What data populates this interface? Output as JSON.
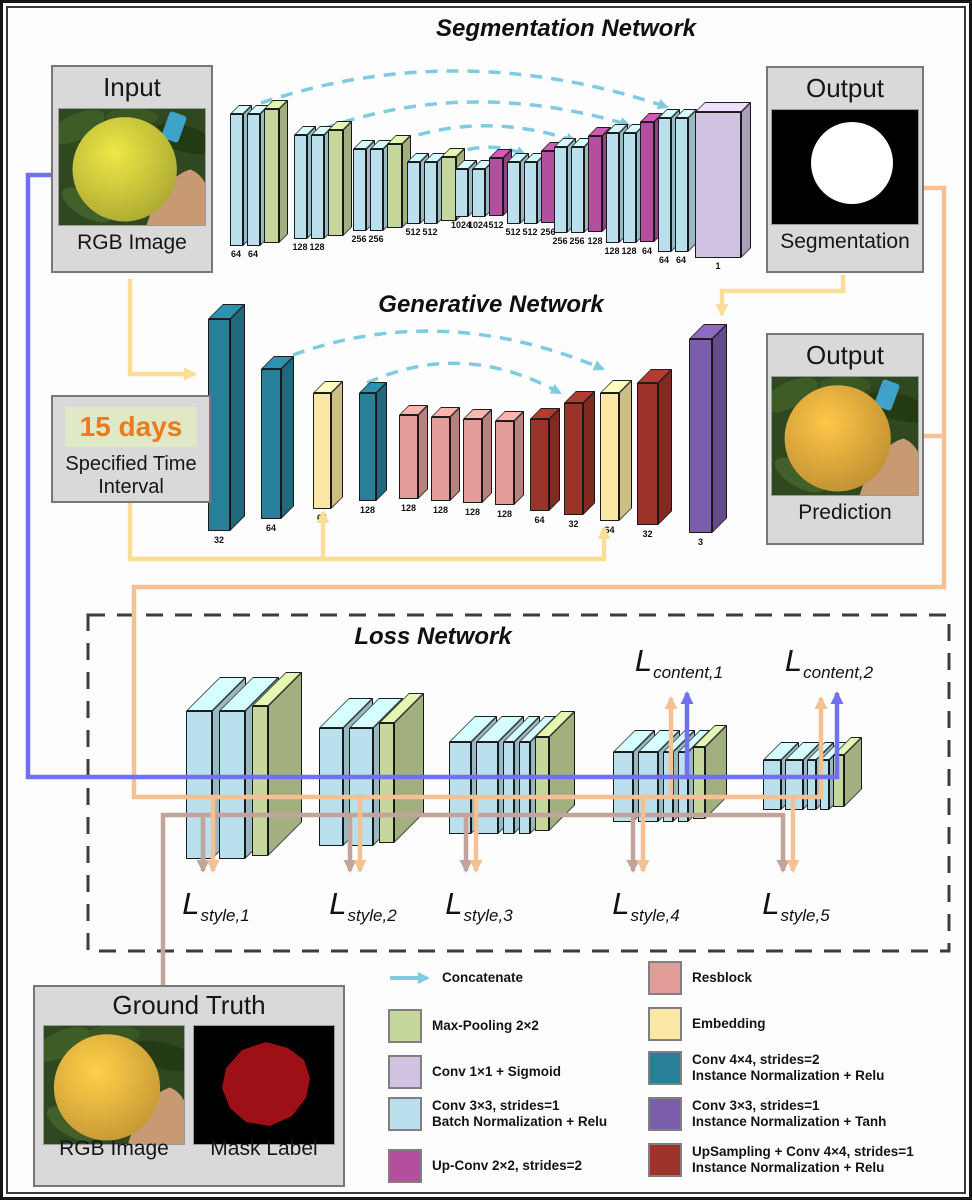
{
  "colors": {
    "conv_bn": "#b9e0ec",
    "pool": "#c5d79c",
    "conv_sigmoid": "#cfc3e1",
    "upconv": "#b44f9f",
    "conv_in_relu": "#277f99",
    "embedding": "#fae8a4",
    "resblock": "#e29d98",
    "upsampling": "#9c332a",
    "conv_in_tanh": "#7a5dab",
    "concat_arrow": "#7fcbe0",
    "line_yellow": "#fadd96",
    "line_peach": "#f4c194",
    "line_blue": "#7170ee",
    "line_tan": "#c2a49c",
    "days_text": "#ee7a20",
    "days_bg": "#dfe9c6",
    "box_bg": "#d9d9d9"
  },
  "images": {
    "input_fruit": "#c9c53b",
    "prediction_fruit": "#e2a83c",
    "ground_truth_fruit": "#e9b13e",
    "mask_fill": "#9c1016",
    "segmentation_mask": "#ffffff",
    "photo_background": "#2f481f",
    "hand": "#c79a74"
  },
  "segmentation_network": {
    "title": "Segmentation Network",
    "input_box": {
      "title": "Input",
      "caption": "RGB Image"
    },
    "output_box": {
      "title": "Output",
      "caption": "Segmentation"
    },
    "groups": [
      {
        "convs": [
          "64",
          "64"
        ],
        "pool": true
      },
      {
        "convs": [
          "128",
          "128"
        ],
        "pool": true
      },
      {
        "convs": [
          "256",
          "256"
        ],
        "pool": true
      },
      {
        "convs": [
          "512",
          "512"
        ],
        "pool": true
      },
      {
        "convs": [
          "1024",
          "1024"
        ],
        "up": "512"
      },
      {
        "convs": [
          "512",
          "512"
        ],
        "up": "256"
      },
      {
        "convs": [
          "256",
          "256"
        ],
        "up": "128"
      },
      {
        "convs": [
          "128",
          "128"
        ],
        "up": "64"
      },
      {
        "convs": [
          "64",
          "64"
        ],
        "out": "1"
      }
    ]
  },
  "generative_network": {
    "title": "Generative Network",
    "interval_box": {
      "value": "15 days",
      "caption": "Specified Time Interval"
    },
    "output_box": {
      "title": "Output",
      "caption": "Prediction"
    },
    "blocks": [
      {
        "type": "conv_in_relu",
        "label": "32"
      },
      {
        "type": "conv_in_relu",
        "label": "64"
      },
      {
        "type": "embedding",
        "label": "64"
      },
      {
        "type": "conv_in_relu",
        "label": "128"
      },
      {
        "type": "resblock",
        "label": "128"
      },
      {
        "type": "resblock",
        "label": "128"
      },
      {
        "type": "resblock",
        "label": "128"
      },
      {
        "type": "resblock",
        "label": "128"
      },
      {
        "type": "upsampling",
        "label": "64"
      },
      {
        "type": "upsampling",
        "label": "32"
      },
      {
        "type": "embedding",
        "label": "64"
      },
      {
        "type": "upsampling",
        "label": "32"
      },
      {
        "type": "conv_in_tanh",
        "label": "3"
      }
    ]
  },
  "loss_network": {
    "title": "Loss Network",
    "groups": [
      {
        "convs": 2
      },
      {
        "convs": 2
      },
      {
        "convs": 4
      },
      {
        "convs": 4
      },
      {
        "convs": 4
      }
    ],
    "content_labels": [
      {
        "base": "L",
        "sub": "content,1"
      },
      {
        "base": "L",
        "sub": "content,2"
      }
    ],
    "style_labels": [
      {
        "base": "L",
        "sub": "style,1"
      },
      {
        "base": "L",
        "sub": "style,2"
      },
      {
        "base": "L",
        "sub": "style,3"
      },
      {
        "base": "L",
        "sub": "style,4"
      },
      {
        "base": "L",
        "sub": "style,5"
      }
    ]
  },
  "ground_truth_box": {
    "title": "Ground Truth",
    "rgb_caption": "RGB Image",
    "mask_caption": "Mask Label"
  },
  "legend": {
    "left": [
      {
        "swatch": "arrow",
        "color": "concat_arrow",
        "label": "Concatenate"
      },
      {
        "swatch": "box",
        "color": "pool",
        "label": "Max-Pooling 2×2"
      },
      {
        "swatch": "box",
        "color": "conv_sigmoid",
        "label": "Conv 1×1 + Sigmoid"
      },
      {
        "swatch": "box",
        "color": "conv_bn",
        "label": "Conv 3×3, strides=1\nBatch Normalization + Relu"
      },
      {
        "swatch": "box",
        "color": "upconv",
        "label": "Up-Conv 2×2, strides=2"
      }
    ],
    "right": [
      {
        "swatch": "box",
        "color": "resblock",
        "label": "Resblock"
      },
      {
        "swatch": "box",
        "color": "embedding",
        "label": "Embedding"
      },
      {
        "swatch": "box",
        "color": "conv_in_relu",
        "label": "Conv 4×4, strides=2\nInstance Normalization + Relu"
      },
      {
        "swatch": "box",
        "color": "conv_in_tanh",
        "label": "Conv 3×3, strides=1\nInstance Normalization + Tanh"
      },
      {
        "swatch": "box",
        "color": "upsampling",
        "label": "UpSampling + Conv 4×4, strides=1\nInstance Normalization + Relu"
      }
    ]
  }
}
